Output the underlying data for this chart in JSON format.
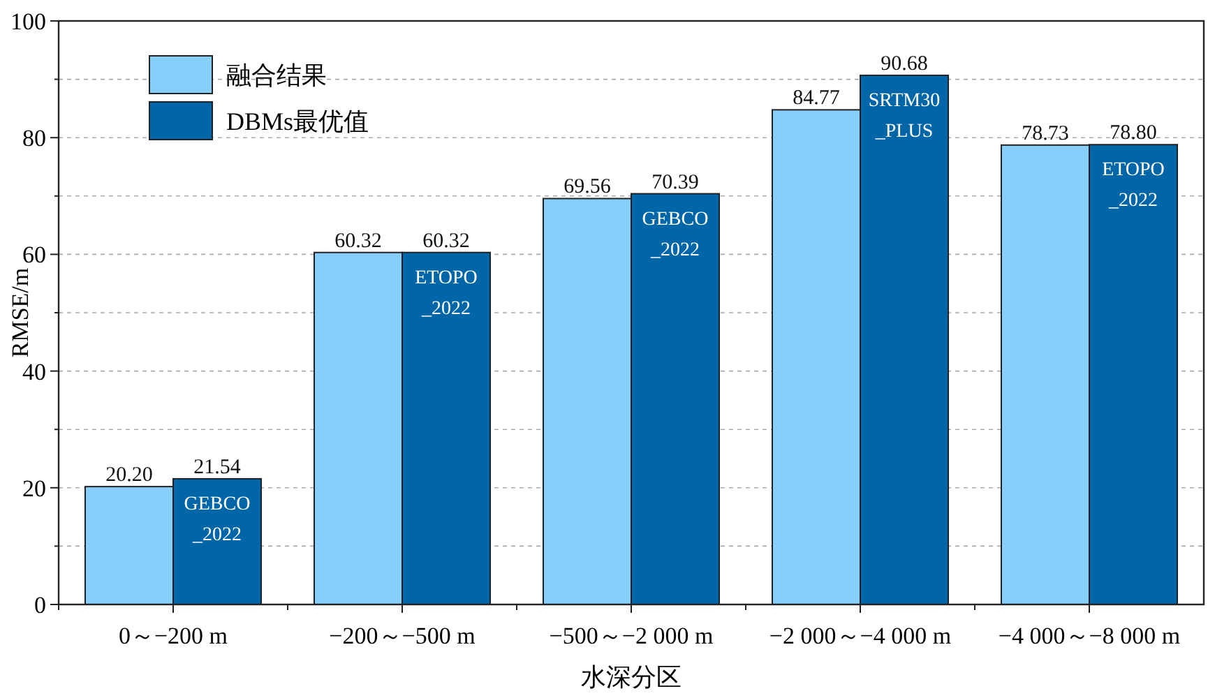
{
  "chart_data": {
    "type": "bar",
    "xlabel": "水深分区",
    "ylabel": "RMSE/m",
    "categories": [
      "0～−200 m",
      "−200～−500 m",
      "−500～−2 000 m",
      "−2 000～−4 000 m",
      "−4 000～−8 000 m"
    ],
    "series": [
      {
        "name": "融合结果",
        "color": "#87cefa",
        "values": [
          20.2,
          60.32,
          69.56,
          84.77,
          78.73
        ],
        "value_labels": [
          "20.20",
          "60.32",
          "69.56",
          "84.77",
          "78.73"
        ]
      },
      {
        "name": "DBMs最优值",
        "color": "#0066a8",
        "values": [
          21.54,
          60.32,
          70.39,
          90.68,
          78.8
        ],
        "value_labels": [
          "21.54",
          "60.32",
          "70.39",
          "90.68",
          "78.80"
        ]
      }
    ],
    "ylim": [
      0,
      100
    ],
    "yticks": [
      0,
      {
        "value": 10,
        "label": null
      },
      20,
      {
        "value": 30,
        "label": null
      },
      40,
      {
        "value": 50,
        "label": null
      },
      60,
      {
        "value": 70,
        "label": null
      },
      80,
      {
        "value": 90,
        "label": null
      },
      100
    ],
    "grid": "y",
    "legend": "top left",
    "annotations": [
      {
        "text": "GEBCO\n_2022",
        "x": "0～−200 m",
        "y": 21.54
      },
      {
        "text": "ETOPO\n_2022",
        "x": "−200～−500 m",
        "y": 60.32
      },
      {
        "text": "GEBCO\n_2022",
        "x": "−500～−2 000 m",
        "y": 70.39
      },
      {
        "text": "SRTM30\n_PLUS",
        "x": "−2 000～−4 000 m",
        "y": 90.68
      },
      {
        "text": "ETOPO\n_2022",
        "x": "−4 000～−8 000 m",
        "y": 78.8
      }
    ]
  }
}
